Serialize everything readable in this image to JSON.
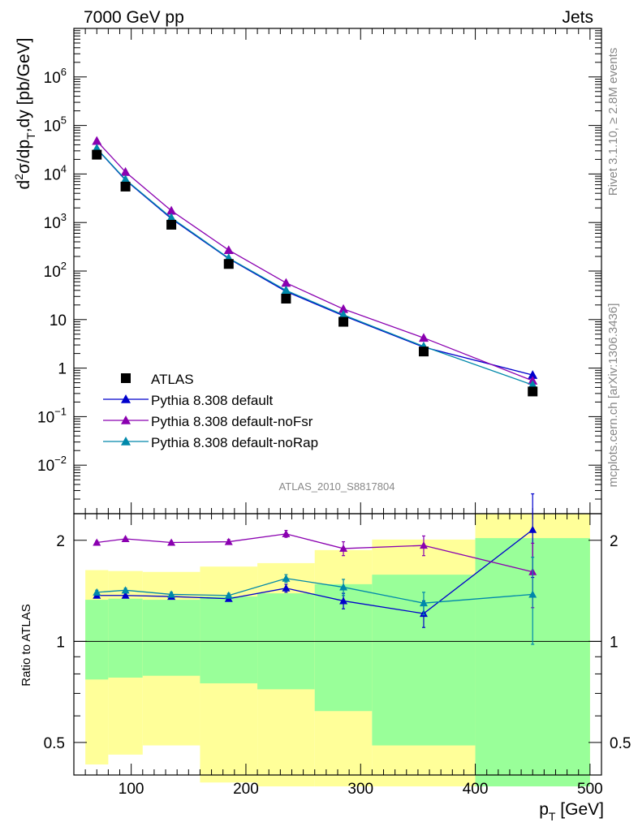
{
  "header": {
    "left": "7000 GeV pp",
    "right": "Jets"
  },
  "side_labels": {
    "rivet": "Rivet 3.1.10, ≥ 2.8M events",
    "mcplots": "mcplots.cern.ch [arXiv:1306.3436]"
  },
  "colors": {
    "data": "#000000",
    "default": "#0000cc",
    "noFsr": "#8a00b0",
    "noRap": "#0088aa",
    "band_inner": "#99ff99",
    "band_outer": "#ffff99"
  },
  "chart_data": [
    {
      "type": "line",
      "title": "",
      "watermark": "ATLAS_2010_S8817804",
      "ylabel": "d²σ/dp_T,dy [pb/GeV]",
      "y_scale": "log",
      "ylim": [
        0.001,
        10000000
      ],
      "xlim": [
        50,
        510
      ],
      "y_ticks": [
        {
          "v": 0.01,
          "base": "10",
          "exp": "−2"
        },
        {
          "v": 0.1,
          "base": "10",
          "exp": "−1"
        },
        {
          "v": 1,
          "base": "1",
          "exp": ""
        },
        {
          "v": 10,
          "base": "10",
          "exp": ""
        },
        {
          "v": 100,
          "base": "10",
          "exp": "2"
        },
        {
          "v": 1000,
          "base": "10",
          "exp": "3"
        },
        {
          "v": 10000,
          "base": "10",
          "exp": "4"
        },
        {
          "v": 100000,
          "base": "10",
          "exp": "5"
        },
        {
          "v": 1000000,
          "base": "10",
          "exp": "6"
        }
      ],
      "legend_position": "bottom-left",
      "data_points": {
        "name": "ATLAS",
        "x": [
          70,
          95,
          135,
          185,
          235,
          285,
          355,
          450
        ],
        "y": [
          25000,
          5500,
          900,
          140,
          27,
          9,
          2.2,
          0.33
        ]
      },
      "series": [
        {
          "name": "Pythia 8.308 default",
          "key": "default",
          "x": [
            70,
            95,
            135,
            185,
            235,
            285,
            355,
            450
          ],
          "y": [
            33000,
            7500,
            1200,
            180,
            38,
            12,
            2.7,
            0.72
          ]
        },
        {
          "name": "Pythia 8.308 default-noFsr",
          "key": "noFsr",
          "x": [
            70,
            95,
            135,
            185,
            235,
            285,
            355,
            450
          ],
          "y": [
            48000,
            11000,
            1750,
            270,
            57,
            16.5,
            4.2,
            0.55
          ]
        },
        {
          "name": "Pythia 8.308 default-noRap",
          "key": "noRap",
          "x": [
            70,
            95,
            135,
            185,
            235,
            285,
            355,
            450
          ],
          "y": [
            33500,
            7700,
            1250,
            185,
            40,
            12.5,
            2.8,
            0.45
          ]
        }
      ]
    },
    {
      "type": "line",
      "ylabel": "Ratio to ATLAS",
      "xlabel": "p_T [GeV]",
      "y_scale": "log",
      "ylim": [
        0.4,
        2.4
      ],
      "xlim": [
        50,
        510
      ],
      "x_ticks": [
        100,
        200,
        300,
        400,
        500
      ],
      "y_ticks": [
        {
          "v": 0.5,
          "label": "0.5"
        },
        {
          "v": 1,
          "label": "1"
        },
        {
          "v": 2,
          "label": "2"
        }
      ],
      "reference_line": 1,
      "bands": [
        {
          "xlo": 60,
          "xhi": 80,
          "inner": [
            0.77,
            1.33
          ],
          "outer": [
            0.43,
            1.63
          ]
        },
        {
          "xlo": 80,
          "xhi": 110,
          "inner": [
            0.78,
            1.34
          ],
          "outer": [
            0.46,
            1.62
          ]
        },
        {
          "xlo": 110,
          "xhi": 160,
          "inner": [
            0.79,
            1.33
          ],
          "outer": [
            0.49,
            1.61
          ]
        },
        {
          "xlo": 160,
          "xhi": 210,
          "inner": [
            0.75,
            1.36
          ],
          "outer": [
            0.38,
            1.67
          ]
        },
        {
          "xlo": 210,
          "xhi": 260,
          "inner": [
            0.72,
            1.39
          ],
          "outer": [
            0.37,
            1.71
          ]
        },
        {
          "xlo": 260,
          "xhi": 310,
          "inner": [
            0.62,
            1.48
          ],
          "outer": [
            0.37,
            1.87
          ]
        },
        {
          "xlo": 310,
          "xhi": 400,
          "inner": [
            0.49,
            1.58
          ],
          "outer": [
            0.37,
            2.01
          ]
        },
        {
          "xlo": 400,
          "xhi": 500,
          "inner": [
            0.37,
            2.03
          ],
          "outer": [
            0.37,
            2.4
          ]
        }
      ],
      "series": [
        {
          "name": "Pythia 8.308 default",
          "key": "default",
          "x": [
            70,
            95,
            135,
            185,
            235,
            285,
            355,
            450
          ],
          "y": [
            1.37,
            1.37,
            1.36,
            1.34,
            1.44,
            1.32,
            1.21,
            2.15
          ],
          "err": [
            0.02,
            0.02,
            0.02,
            0.02,
            0.04,
            0.07,
            0.11,
            0.6
          ]
        },
        {
          "name": "Pythia 8.308 default-noFsr",
          "key": "noFsr",
          "x": [
            70,
            95,
            135,
            185,
            235,
            285,
            355,
            450
          ],
          "y": [
            1.97,
            2.02,
            1.97,
            1.98,
            2.09,
            1.89,
            1.93,
            1.61
          ],
          "err": [
            0.02,
            0.02,
            0.02,
            0.03,
            0.05,
            0.09,
            0.13,
            0.35
          ]
        },
        {
          "name": "Pythia 8.308 default-noRap",
          "key": "noRap",
          "x": [
            70,
            95,
            135,
            185,
            235,
            285,
            355,
            450
          ],
          "y": [
            1.4,
            1.42,
            1.38,
            1.37,
            1.54,
            1.45,
            1.3,
            1.38
          ],
          "err": [
            0.02,
            0.02,
            0.02,
            0.02,
            0.04,
            0.08,
            0.1,
            0.4
          ]
        }
      ]
    }
  ]
}
